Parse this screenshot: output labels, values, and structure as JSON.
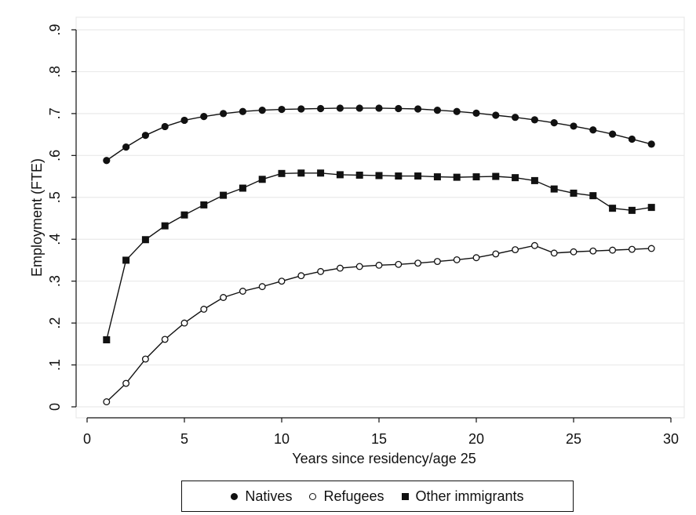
{
  "chart_data": {
    "type": "line",
    "title": "",
    "xlabel": "Years since residency/age 25",
    "ylabel": "Employment (FTE)",
    "xlim": [
      0,
      30
    ],
    "ylim": [
      0,
      0.9
    ],
    "x_ticks": [
      0,
      5,
      10,
      15,
      20,
      25,
      30
    ],
    "x_tick_labels": [
      "0",
      "5",
      "10",
      "15",
      "20",
      "25",
      "30"
    ],
    "y_ticks": [
      0,
      0.1,
      0.2,
      0.3,
      0.4,
      0.5,
      0.6,
      0.7,
      0.8,
      0.9
    ],
    "y_tick_labels": [
      "0",
      ".1",
      ".2",
      ".3",
      ".4",
      ".5",
      ".6",
      ".7",
      ".8",
      ".9"
    ],
    "grid": "horizontal",
    "legend_position": "bottom",
    "x": [
      1,
      2,
      3,
      4,
      5,
      6,
      7,
      8,
      9,
      10,
      11,
      12,
      13,
      14,
      15,
      16,
      17,
      18,
      19,
      20,
      21,
      22,
      23,
      24,
      25,
      26,
      27,
      28,
      29
    ],
    "series": [
      {
        "name": "Natives",
        "marker": "filled-circle",
        "values": [
          0.588,
          0.62,
          0.648,
          0.669,
          0.684,
          0.693,
          0.7,
          0.705,
          0.708,
          0.71,
          0.711,
          0.712,
          0.713,
          0.713,
          0.713,
          0.712,
          0.711,
          0.708,
          0.705,
          0.701,
          0.696,
          0.691,
          0.685,
          0.678,
          0.67,
          0.661,
          0.651,
          0.639,
          0.627
        ]
      },
      {
        "name": "Refugees",
        "marker": "hollow-circle",
        "values": [
          0.012,
          0.056,
          0.114,
          0.161,
          0.2,
          0.233,
          0.261,
          0.276,
          0.287,
          0.3,
          0.313,
          0.323,
          0.331,
          0.335,
          0.338,
          0.34,
          0.343,
          0.347,
          0.351,
          0.356,
          0.365,
          0.375,
          0.385,
          0.367,
          0.37,
          0.372,
          0.374,
          0.376,
          0.378
        ]
      },
      {
        "name": "Other immigrants",
        "marker": "filled-square",
        "values": [
          0.16,
          0.35,
          0.399,
          0.432,
          0.458,
          0.482,
          0.505,
          0.522,
          0.543,
          0.557,
          0.558,
          0.558,
          0.554,
          0.553,
          0.552,
          0.551,
          0.551,
          0.549,
          0.548,
          0.549,
          0.55,
          0.547,
          0.54,
          0.52,
          0.51,
          0.504,
          0.474,
          0.469,
          0.476
        ]
      }
    ]
  }
}
